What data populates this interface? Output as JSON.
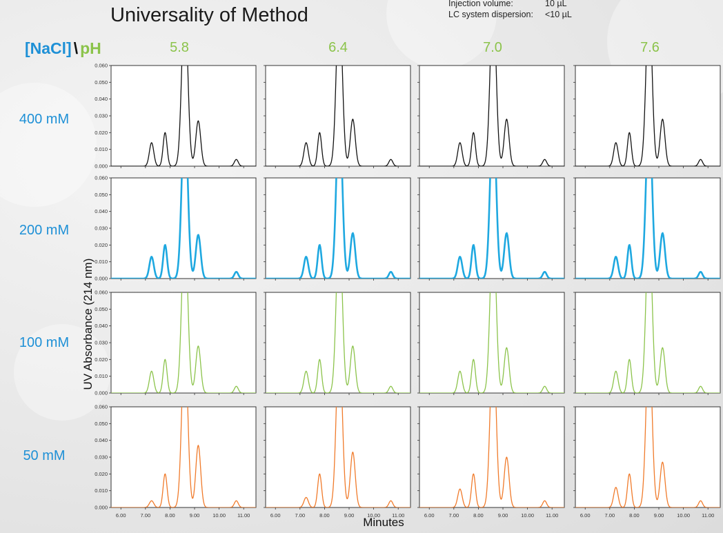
{
  "title": "Universality of Method",
  "info": [
    {
      "label": "Injection volume:",
      "value": "10 µL"
    },
    {
      "label": "LC system dispersion:",
      "value": "<10 µL"
    }
  ],
  "corner": {
    "nacl": "[NaCl]",
    "sep": "\\",
    "ph": "pH"
  },
  "ph_levels": [
    "5.8",
    "6.4",
    "7.0",
    "7.6"
  ],
  "salt_levels": [
    "400 mM",
    "200 mM",
    "100 mM",
    "50 mM"
  ],
  "ylabel": "UV Absorbance (214 nm)",
  "xlabel": "Minutes",
  "colors": {
    "400 mM": "#111111",
    "200 mM": "#1ea8e0",
    "100 mM": "#8bc34a",
    "50 mM": "#f07a2a"
  },
  "chart_data": {
    "type": "line",
    "layout": "4x4 small multiples (rows = [NaCl], columns = pH)",
    "x_ticks": [
      "6.00",
      "7.00",
      "8.00",
      "9.00",
      "10.00",
      "11.00"
    ],
    "y_ticks": [
      "0.000",
      "0.010",
      "0.020",
      "0.030",
      "0.040",
      "0.050",
      "0.060"
    ],
    "xlim": [
      5.6,
      11.5
    ],
    "ylim": [
      0,
      0.06
    ],
    "baseline": 0.0,
    "panels": [
      {
        "nacl": "400 mM",
        "ph": "5.8",
        "peaks": [
          {
            "rt": 7.25,
            "h": 0.014,
            "w": 0.09
          },
          {
            "rt": 7.8,
            "h": 0.02,
            "w": 0.08
          },
          {
            "rt": 8.6,
            "h": 0.1,
            "w": 0.12
          },
          {
            "rt": 9.15,
            "h": 0.027,
            "w": 0.1
          },
          {
            "rt": 10.7,
            "h": 0.004,
            "w": 0.08
          }
        ]
      },
      {
        "nacl": "400 mM",
        "ph": "6.4",
        "peaks": [
          {
            "rt": 7.25,
            "h": 0.014,
            "w": 0.09
          },
          {
            "rt": 7.8,
            "h": 0.02,
            "w": 0.08
          },
          {
            "rt": 8.6,
            "h": 0.1,
            "w": 0.12
          },
          {
            "rt": 9.15,
            "h": 0.028,
            "w": 0.1
          },
          {
            "rt": 10.7,
            "h": 0.004,
            "w": 0.08
          }
        ]
      },
      {
        "nacl": "400 mM",
        "ph": "7.0",
        "peaks": [
          {
            "rt": 7.25,
            "h": 0.014,
            "w": 0.09
          },
          {
            "rt": 7.8,
            "h": 0.02,
            "w": 0.08
          },
          {
            "rt": 8.6,
            "h": 0.1,
            "w": 0.12
          },
          {
            "rt": 9.15,
            "h": 0.028,
            "w": 0.1
          },
          {
            "rt": 10.7,
            "h": 0.004,
            "w": 0.08
          }
        ]
      },
      {
        "nacl": "400 mM",
        "ph": "7.6",
        "peaks": [
          {
            "rt": 7.25,
            "h": 0.014,
            "w": 0.09
          },
          {
            "rt": 7.8,
            "h": 0.02,
            "w": 0.08
          },
          {
            "rt": 8.6,
            "h": 0.1,
            "w": 0.12
          },
          {
            "rt": 9.15,
            "h": 0.028,
            "w": 0.1
          },
          {
            "rt": 10.7,
            "h": 0.004,
            "w": 0.08
          }
        ]
      },
      {
        "nacl": "200 mM",
        "ph": "5.8",
        "peaks": [
          {
            "rt": 7.25,
            "h": 0.013,
            "w": 0.09
          },
          {
            "rt": 7.8,
            "h": 0.02,
            "w": 0.08
          },
          {
            "rt": 8.6,
            "h": 0.1,
            "w": 0.12
          },
          {
            "rt": 9.15,
            "h": 0.026,
            "w": 0.1
          },
          {
            "rt": 10.7,
            "h": 0.004,
            "w": 0.08
          }
        ]
      },
      {
        "nacl": "200 mM",
        "ph": "6.4",
        "peaks": [
          {
            "rt": 7.25,
            "h": 0.013,
            "w": 0.09
          },
          {
            "rt": 7.8,
            "h": 0.02,
            "w": 0.08
          },
          {
            "rt": 8.6,
            "h": 0.1,
            "w": 0.12
          },
          {
            "rt": 9.15,
            "h": 0.027,
            "w": 0.1
          },
          {
            "rt": 10.7,
            "h": 0.004,
            "w": 0.08
          }
        ]
      },
      {
        "nacl": "200 mM",
        "ph": "7.0",
        "peaks": [
          {
            "rt": 7.25,
            "h": 0.013,
            "w": 0.09
          },
          {
            "rt": 7.8,
            "h": 0.02,
            "w": 0.08
          },
          {
            "rt": 8.6,
            "h": 0.1,
            "w": 0.12
          },
          {
            "rt": 9.15,
            "h": 0.027,
            "w": 0.1
          },
          {
            "rt": 10.7,
            "h": 0.004,
            "w": 0.08
          }
        ]
      },
      {
        "nacl": "200 mM",
        "ph": "7.6",
        "peaks": [
          {
            "rt": 7.25,
            "h": 0.013,
            "w": 0.09
          },
          {
            "rt": 7.8,
            "h": 0.02,
            "w": 0.08
          },
          {
            "rt": 8.6,
            "h": 0.1,
            "w": 0.12
          },
          {
            "rt": 9.15,
            "h": 0.027,
            "w": 0.1
          },
          {
            "rt": 10.7,
            "h": 0.004,
            "w": 0.08
          }
        ]
      },
      {
        "nacl": "100 mM",
        "ph": "5.8",
        "peaks": [
          {
            "rt": 7.25,
            "h": 0.013,
            "w": 0.09
          },
          {
            "rt": 7.8,
            "h": 0.02,
            "w": 0.08
          },
          {
            "rt": 8.6,
            "h": 0.1,
            "w": 0.12
          },
          {
            "rt": 9.15,
            "h": 0.028,
            "w": 0.1
          },
          {
            "rt": 10.7,
            "h": 0.004,
            "w": 0.08
          }
        ]
      },
      {
        "nacl": "100 mM",
        "ph": "6.4",
        "peaks": [
          {
            "rt": 7.25,
            "h": 0.013,
            "w": 0.09
          },
          {
            "rt": 7.8,
            "h": 0.02,
            "w": 0.08
          },
          {
            "rt": 8.6,
            "h": 0.1,
            "w": 0.12
          },
          {
            "rt": 9.15,
            "h": 0.028,
            "w": 0.1
          },
          {
            "rt": 10.7,
            "h": 0.004,
            "w": 0.08
          }
        ]
      },
      {
        "nacl": "100 mM",
        "ph": "7.0",
        "peaks": [
          {
            "rt": 7.25,
            "h": 0.013,
            "w": 0.09
          },
          {
            "rt": 7.8,
            "h": 0.02,
            "w": 0.08
          },
          {
            "rt": 8.6,
            "h": 0.1,
            "w": 0.12
          },
          {
            "rt": 9.15,
            "h": 0.027,
            "w": 0.1
          },
          {
            "rt": 10.7,
            "h": 0.004,
            "w": 0.08
          }
        ]
      },
      {
        "nacl": "100 mM",
        "ph": "7.6",
        "peaks": [
          {
            "rt": 7.25,
            "h": 0.013,
            "w": 0.09
          },
          {
            "rt": 7.8,
            "h": 0.02,
            "w": 0.08
          },
          {
            "rt": 8.6,
            "h": 0.1,
            "w": 0.12
          },
          {
            "rt": 9.15,
            "h": 0.027,
            "w": 0.1
          },
          {
            "rt": 10.7,
            "h": 0.004,
            "w": 0.08
          }
        ]
      },
      {
        "nacl": "50 mM",
        "ph": "5.8",
        "peaks": [
          {
            "rt": 7.25,
            "h": 0.004,
            "w": 0.09
          },
          {
            "rt": 7.8,
            "h": 0.02,
            "w": 0.08
          },
          {
            "rt": 8.6,
            "h": 0.1,
            "w": 0.12
          },
          {
            "rt": 9.15,
            "h": 0.037,
            "w": 0.1
          },
          {
            "rt": 10.7,
            "h": 0.004,
            "w": 0.08
          }
        ]
      },
      {
        "nacl": "50 mM",
        "ph": "6.4",
        "peaks": [
          {
            "rt": 7.25,
            "h": 0.006,
            "w": 0.09
          },
          {
            "rt": 7.8,
            "h": 0.02,
            "w": 0.08
          },
          {
            "rt": 8.6,
            "h": 0.1,
            "w": 0.12
          },
          {
            "rt": 9.15,
            "h": 0.033,
            "w": 0.1
          },
          {
            "rt": 10.7,
            "h": 0.004,
            "w": 0.08
          }
        ]
      },
      {
        "nacl": "50 mM",
        "ph": "7.0",
        "peaks": [
          {
            "rt": 7.25,
            "h": 0.011,
            "w": 0.09
          },
          {
            "rt": 7.8,
            "h": 0.02,
            "w": 0.08
          },
          {
            "rt": 8.6,
            "h": 0.1,
            "w": 0.12
          },
          {
            "rt": 9.15,
            "h": 0.03,
            "w": 0.1
          },
          {
            "rt": 10.7,
            "h": 0.004,
            "w": 0.08
          }
        ]
      },
      {
        "nacl": "50 mM",
        "ph": "7.6",
        "peaks": [
          {
            "rt": 7.25,
            "h": 0.012,
            "w": 0.09
          },
          {
            "rt": 7.8,
            "h": 0.02,
            "w": 0.08
          },
          {
            "rt": 8.6,
            "h": 0.1,
            "w": 0.12
          },
          {
            "rt": 9.15,
            "h": 0.027,
            "w": 0.1
          },
          {
            "rt": 10.7,
            "h": 0.004,
            "w": 0.08
          }
        ]
      }
    ]
  }
}
